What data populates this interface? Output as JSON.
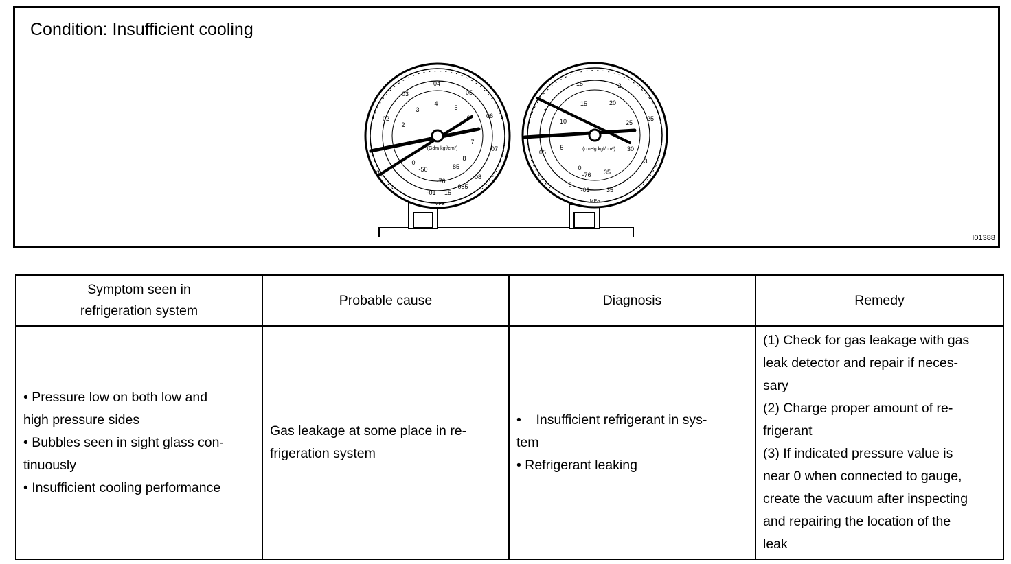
{
  "figure": {
    "condition_title": "Condition: Insufficient cooling",
    "figure_id": "I01388",
    "low_gauge": {
      "outer_ticks": [
        "0",
        "02",
        "03",
        "04",
        "05",
        "06",
        "07",
        "08",
        "085",
        "15",
        "-01"
      ],
      "inner_ticks": [
        "-50",
        "0",
        "2",
        "3",
        "4",
        "5",
        "6",
        "7",
        "8",
        "85",
        "-76"
      ],
      "dial_label": "(Gdm kgf/cm²)",
      "unit": "MPa"
    },
    "high_gauge": {
      "outer_ticks": [
        "0",
        "05",
        "1",
        "15",
        "2",
        "25",
        "3",
        "35",
        "-01"
      ],
      "inner_ticks": [
        "0",
        "5",
        "10",
        "15",
        "20",
        "25",
        "30",
        "35",
        "-76"
      ],
      "dial_label": "(cmHg kgf/cm²)",
      "unit": "MPa"
    }
  },
  "table": {
    "headers": {
      "symptom": [
        "Symptom seen in",
        "refrigeration system"
      ],
      "cause": "Probable cause",
      "diagnosis": "Diagnosis",
      "remedy": "Remedy"
    },
    "symptom": [
      "• Pressure low on both low and",
      "high pressure sides",
      "• Bubbles seen in sight glass con-",
      "tinuously",
      "• Insufficient cooling performance"
    ],
    "cause": [
      "Gas leakage at some place in re-",
      "frigeration system"
    ],
    "diagnosis": [
      "•    Insufficient refrigerant in sys-",
      "tem",
      "• Refrigerant leaking"
    ],
    "remedy": [
      "(1) Check for gas leakage with gas",
      "leak detector and repair if neces-",
      "sary",
      "(2) Charge proper amount of re-",
      "frigerant",
      "(3) If indicated pressure value is",
      "near 0 when connected to gauge,",
      "create the vacuum after inspecting",
      "and repairing the location of the",
      "leak"
    ]
  }
}
